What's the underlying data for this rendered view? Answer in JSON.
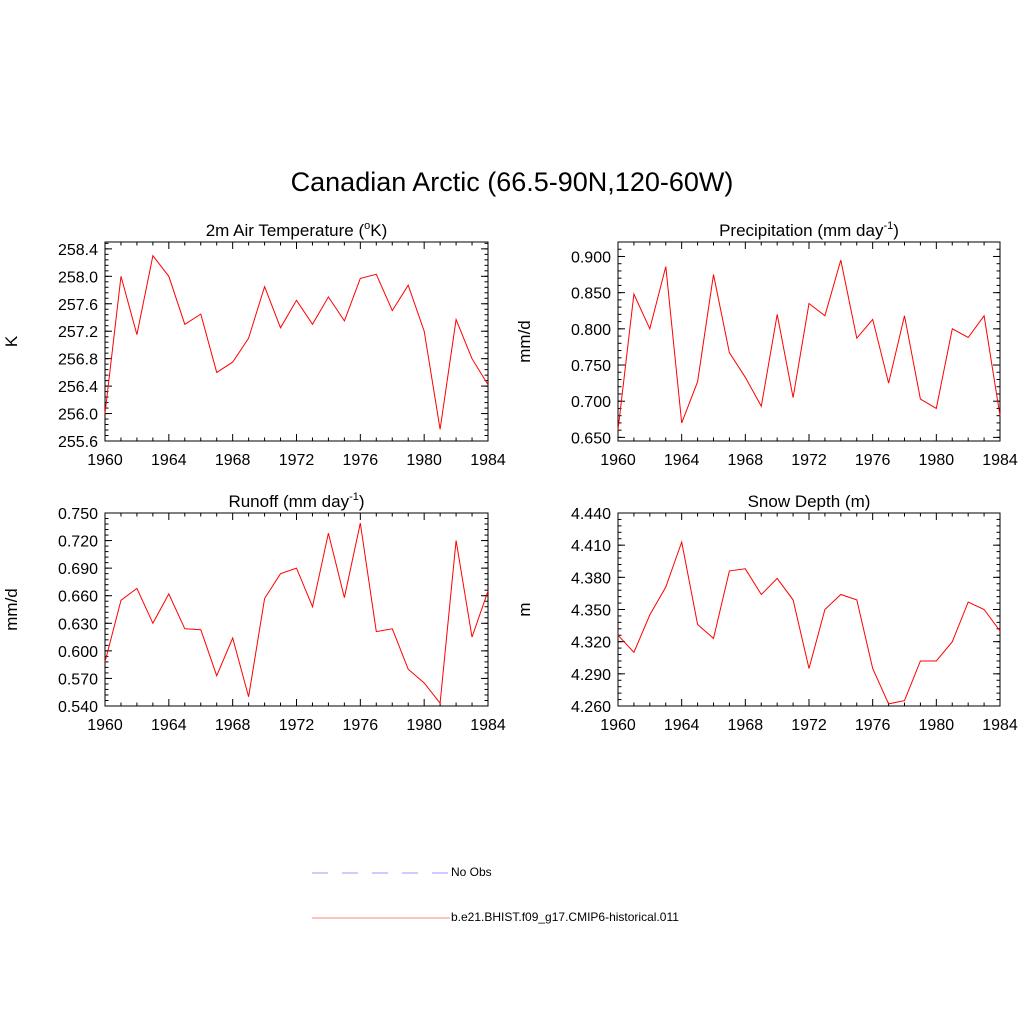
{
  "figure": {
    "title": "Canadian Arctic (66.5-90N,120-60W)"
  },
  "legend": [
    {
      "label": "No Obs",
      "color": "#9999ff",
      "style": "dashed"
    },
    {
      "label": "b.e21.BHIST.f09_g17.CMIP6-historical.011",
      "color": "#ff0000",
      "style": "solid"
    }
  ],
  "chart_data": [
    {
      "type": "line",
      "title": "2m Air Temperature (",
      "title_sup": "o",
      "title_end": "K)",
      "ylabel": "K",
      "xlabel": "",
      "xlim": [
        1960,
        1984
      ],
      "ylim": [
        255.6,
        258.5
      ],
      "xticks": [
        "1960",
        "1964",
        "1968",
        "1972",
        "1976",
        "1980",
        "1984"
      ],
      "yticks": [
        "255.6",
        "256.0",
        "256.4",
        "256.8",
        "257.2",
        "257.6",
        "258.0",
        "258.4"
      ],
      "grid": false,
      "x": [
        1960,
        1961,
        1962,
        1963,
        1964,
        1965,
        1966,
        1967,
        1968,
        1969,
        1970,
        1971,
        1972,
        1973,
        1974,
        1975,
        1976,
        1977,
        1978,
        1979,
        1980,
        1981,
        1982,
        1983,
        1984
      ],
      "series": [
        {
          "name": "b.e21.BHIST.f09_g17.CMIP6-historical.011",
          "color": "#ff0000",
          "values": [
            256.0,
            258.0,
            257.15,
            258.3,
            258.0,
            257.3,
            257.45,
            256.6,
            256.75,
            257.1,
            257.85,
            257.25,
            257.65,
            257.3,
            257.7,
            257.35,
            257.97,
            258.03,
            257.5,
            257.87,
            257.2,
            255.77,
            257.37,
            256.8,
            256.42
          ]
        }
      ]
    },
    {
      "type": "line",
      "title": "Precipitation (mm day",
      "title_sup": "-1",
      "title_end": ")",
      "ylabel": "mm/d",
      "xlabel": "",
      "xlim": [
        1960,
        1984
      ],
      "ylim": [
        0.645,
        0.92
      ],
      "xticks": [
        "1960",
        "1964",
        "1968",
        "1972",
        "1976",
        "1980",
        "1984"
      ],
      "yticks": [
        "0.650",
        "0.700",
        "0.750",
        "0.800",
        "0.850",
        "0.900"
      ],
      "grid": false,
      "x": [
        1960,
        1961,
        1962,
        1963,
        1964,
        1965,
        1966,
        1967,
        1968,
        1969,
        1970,
        1971,
        1972,
        1973,
        1974,
        1975,
        1976,
        1977,
        1978,
        1979,
        1980,
        1981,
        1982,
        1983,
        1984
      ],
      "series": [
        {
          "name": "b.e21.BHIST.f09_g17.CMIP6-historical.011",
          "color": "#ff0000",
          "values": [
            0.66,
            0.848,
            0.8,
            0.886,
            0.67,
            0.727,
            0.875,
            0.767,
            0.733,
            0.693,
            0.82,
            0.705,
            0.835,
            0.818,
            0.895,
            0.787,
            0.813,
            0.725,
            0.818,
            0.703,
            0.69,
            0.8,
            0.788,
            0.818,
            0.68
          ]
        }
      ]
    },
    {
      "type": "line",
      "title": "Runoff (mm day",
      "title_sup": "-1",
      "title_end": ")",
      "ylabel": "mm/d",
      "xlabel": "",
      "xlim": [
        1960,
        1984
      ],
      "ylim": [
        0.54,
        0.75
      ],
      "xticks": [
        "1960",
        "1964",
        "1968",
        "1972",
        "1976",
        "1980",
        "1984"
      ],
      "yticks": [
        "0.540",
        "0.570",
        "0.600",
        "0.630",
        "0.660",
        "0.690",
        "0.720",
        "0.750"
      ],
      "grid": false,
      "x": [
        1960,
        1961,
        1962,
        1963,
        1964,
        1965,
        1966,
        1967,
        1968,
        1969,
        1970,
        1971,
        1972,
        1973,
        1974,
        1975,
        1976,
        1977,
        1978,
        1979,
        1980,
        1981,
        1982,
        1983,
        1984
      ],
      "series": [
        {
          "name": "b.e21.BHIST.f09_g17.CMIP6-historical.011",
          "color": "#ff0000",
          "values": [
            0.588,
            0.655,
            0.668,
            0.63,
            0.662,
            0.624,
            0.623,
            0.573,
            0.614,
            0.55,
            0.657,
            0.684,
            0.69,
            0.648,
            0.728,
            0.658,
            0.739,
            0.621,
            0.624,
            0.58,
            0.565,
            0.543,
            0.72,
            0.615,
            0.665
          ]
        }
      ]
    },
    {
      "type": "line",
      "title": "Snow Depth (m)",
      "title_sup": "",
      "title_end": "",
      "ylabel": "m",
      "xlabel": "",
      "xlim": [
        1960,
        1984
      ],
      "ylim": [
        4.26,
        4.44
      ],
      "xticks": [
        "1960",
        "1964",
        "1968",
        "1972",
        "1976",
        "1980",
        "1984"
      ],
      "yticks": [
        "4.260",
        "4.290",
        "4.320",
        "4.350",
        "4.380",
        "4.410",
        "4.440"
      ],
      "grid": false,
      "x": [
        1960,
        1961,
        1962,
        1963,
        1964,
        1965,
        1966,
        1967,
        1968,
        1969,
        1970,
        1971,
        1972,
        1973,
        1974,
        1975,
        1976,
        1977,
        1978,
        1979,
        1980,
        1981,
        1982,
        1983,
        1984
      ],
      "series": [
        {
          "name": "b.e21.BHIST.f09_g17.CMIP6-historical.011",
          "color": "#ff0000",
          "values": [
            4.326,
            4.31,
            4.345,
            4.371,
            4.413,
            4.336,
            4.323,
            4.386,
            4.388,
            4.364,
            4.379,
            4.359,
            4.295,
            4.35,
            4.364,
            4.359,
            4.295,
            4.262,
            4.265,
            4.302,
            4.302,
            4.32,
            4.357,
            4.35,
            4.33
          ]
        }
      ]
    }
  ]
}
